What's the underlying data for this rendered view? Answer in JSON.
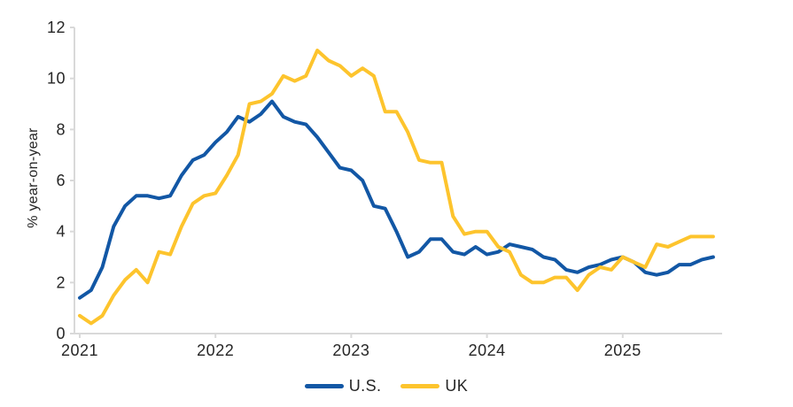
{
  "page": {
    "background": "#ffffff"
  },
  "chart_data": {
    "type": "line",
    "title": "",
    "xlabel": "",
    "ylabel": "% year-on-year",
    "ylim": [
      0,
      12
    ],
    "yticks": [
      0,
      2,
      4,
      6,
      8,
      10,
      12
    ],
    "x_tick_labels": [
      "2021",
      "2022",
      "2023",
      "2024",
      "2025"
    ],
    "grid": false,
    "legend_position": "bottom",
    "axis_color": "#D9D9D9",
    "text_color": "#262626",
    "x": [
      "2021-01",
      "2021-02",
      "2021-03",
      "2021-04",
      "2021-05",
      "2021-06",
      "2021-07",
      "2021-08",
      "2021-09",
      "2021-10",
      "2021-11",
      "2021-12",
      "2022-01",
      "2022-02",
      "2022-03",
      "2022-04",
      "2022-05",
      "2022-06",
      "2022-07",
      "2022-08",
      "2022-09",
      "2022-10",
      "2022-11",
      "2022-12",
      "2023-01",
      "2023-02",
      "2023-03",
      "2023-04",
      "2023-05",
      "2023-06",
      "2023-07",
      "2023-08",
      "2023-09",
      "2023-10",
      "2023-11",
      "2023-12",
      "2024-01",
      "2024-02",
      "2024-03",
      "2024-04",
      "2024-05",
      "2024-06",
      "2024-07",
      "2024-08",
      "2024-09",
      "2024-10",
      "2024-11",
      "2024-12",
      "2025-01",
      "2025-02",
      "2025-03",
      "2025-04",
      "2025-05",
      "2025-06",
      "2025-07",
      "2025-08",
      "2025-09"
    ],
    "series": [
      {
        "name": "U.S.",
        "color": "#1257A5",
        "values": [
          1.4,
          1.7,
          2.6,
          4.2,
          5.0,
          5.4,
          5.4,
          5.3,
          5.4,
          6.2,
          6.8,
          7.0,
          7.5,
          7.9,
          8.5,
          8.3,
          8.6,
          9.1,
          8.5,
          8.3,
          8.2,
          7.7,
          7.1,
          6.5,
          6.4,
          6.0,
          5.0,
          4.9,
          4.0,
          3.0,
          3.2,
          3.7,
          3.7,
          3.2,
          3.1,
          3.4,
          3.1,
          3.2,
          3.5,
          3.4,
          3.3,
          3.0,
          2.9,
          2.5,
          2.4,
          2.6,
          2.7,
          2.9,
          3.0,
          2.8,
          2.4,
          2.3,
          2.4,
          2.7,
          2.7,
          2.9,
          3.0
        ]
      },
      {
        "name": "UK",
        "color": "#FDC42D",
        "values": [
          0.7,
          0.4,
          0.7,
          1.5,
          2.1,
          2.5,
          2.0,
          3.2,
          3.1,
          4.2,
          5.1,
          5.4,
          5.5,
          6.2,
          7.0,
          9.0,
          9.1,
          9.4,
          10.1,
          9.9,
          10.1,
          11.1,
          10.7,
          10.5,
          10.1,
          10.4,
          10.1,
          8.7,
          8.7,
          7.9,
          6.8,
          6.7,
          6.7,
          4.6,
          3.9,
          4.0,
          4.0,
          3.4,
          3.2,
          2.3,
          2.0,
          2.0,
          2.2,
          2.2,
          1.7,
          2.3,
          2.6,
          2.5,
          3.0,
          2.8,
          2.6,
          3.5,
          3.4,
          3.6,
          3.8,
          3.8,
          3.8
        ]
      }
    ]
  }
}
